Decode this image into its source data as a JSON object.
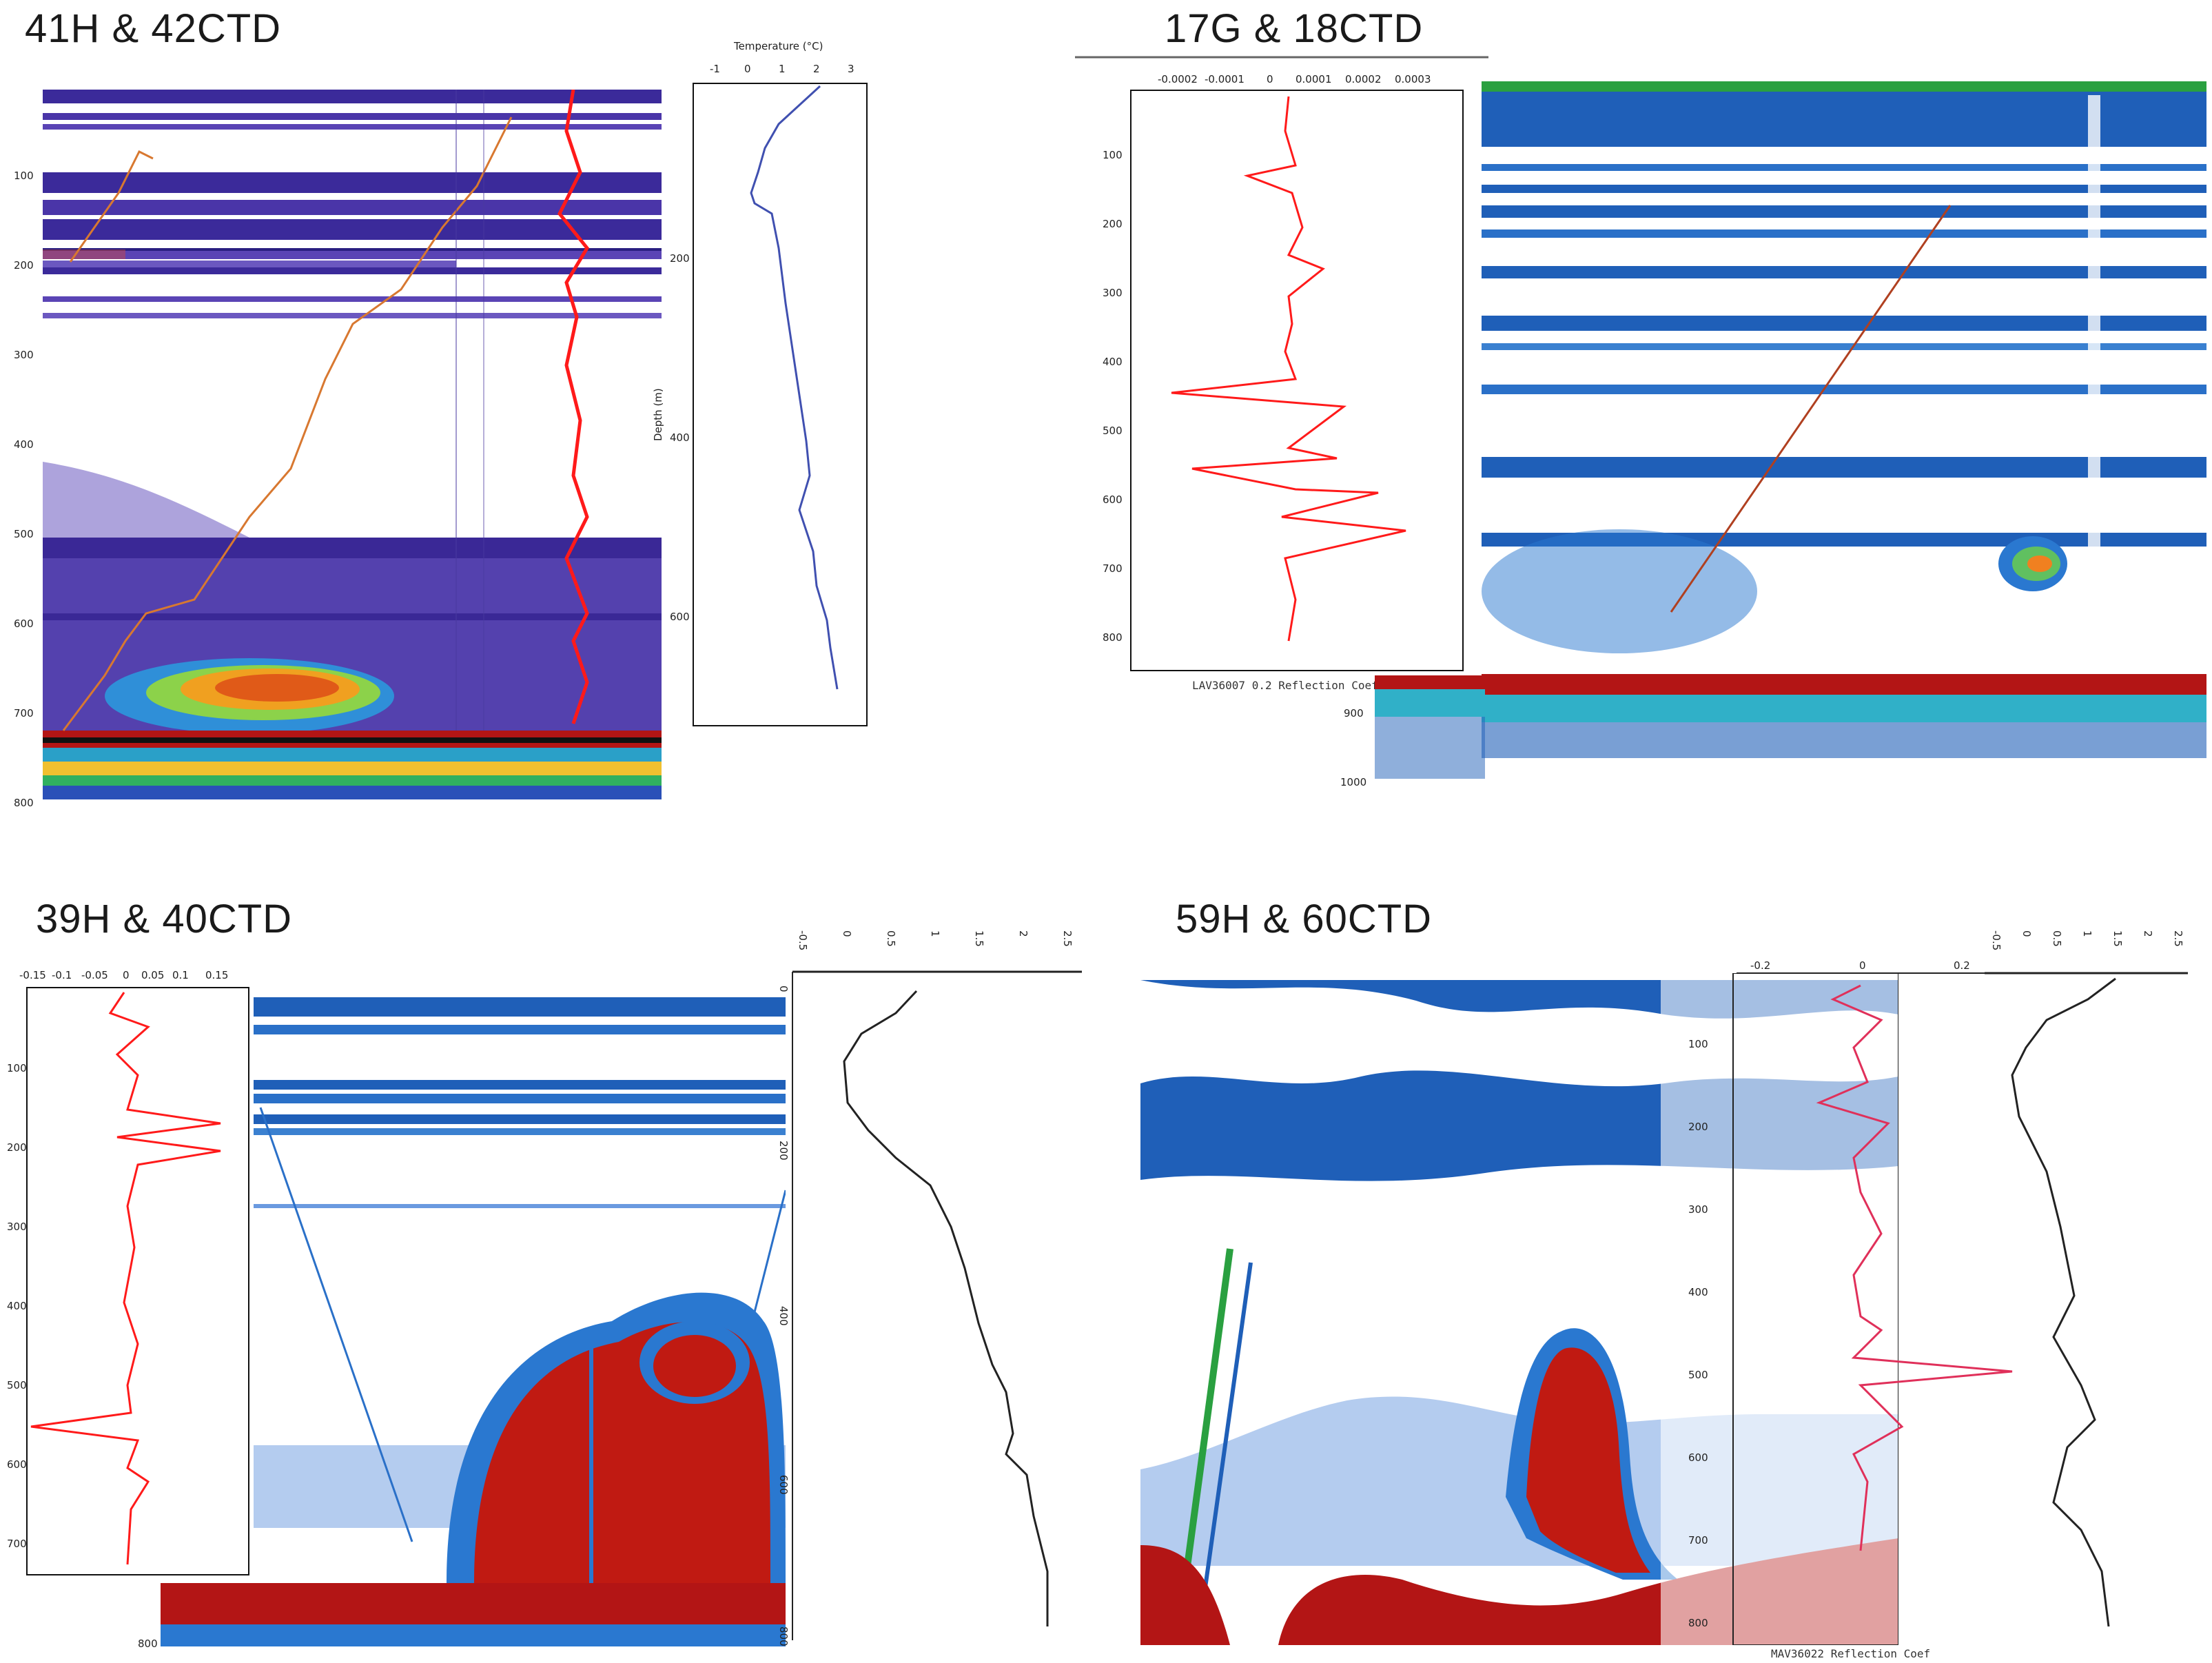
{
  "panels": [
    {
      "title": "41H & 42CTD",
      "colors": {
        "background": "#5a3fb0",
        "bottom": "#b31515",
        "school": "#f08020",
        "trace": "#ff1a1a"
      },
      "temperature_axis_label": "Temperature (°C)",
      "temperature_ticks": [
        "-1",
        "0",
        "1",
        "2",
        "3"
      ],
      "depth_axis_label": "Depth (m)",
      "profile_depth_ticks": [
        "200",
        "400",
        "600"
      ],
      "echo_depth_ticks": [
        "100",
        "200",
        "300",
        "400",
        "500",
        "600",
        "700",
        "800"
      ]
    },
    {
      "title": "17G & 18CTD",
      "colors": {
        "background": "#ffffff",
        "layer": "#1f5fb8",
        "bottom": "#b31515",
        "trace": "#ff1a1a"
      },
      "reflection_ticks": [
        "-0.0002",
        "-0.0001",
        "0",
        "0.0001",
        "0.0002",
        "0.0003"
      ],
      "reflection_label": "LAV36007 0.2 Reflection Coef",
      "depth_ticks": [
        "100",
        "200",
        "300",
        "400",
        "500",
        "600",
        "700",
        "800"
      ],
      "echo_depth_ticks": [
        "900",
        "1000"
      ]
    },
    {
      "title": "39H & 40CTD",
      "colors": {
        "background": "#ffffff",
        "layer": "#1f5fb8",
        "bottom": "#b31515",
        "school": "#c01a12",
        "trace": "#ff1a1a"
      },
      "reflection_ticks": [
        "-0.15",
        "-0.1",
        "-0.05",
        "0",
        "0.05",
        "0.1",
        "0.15"
      ],
      "depth_ticks": [
        "100",
        "200",
        "300",
        "400",
        "500",
        "600",
        "700"
      ],
      "echo_depth_ticks": [
        "800"
      ],
      "temperature_ticks": [
        "-0.5",
        "0",
        "0.5",
        "1",
        "1.5",
        "2",
        "2.5"
      ],
      "profile_depth_ticks": [
        "0",
        "200",
        "400",
        "600",
        "800"
      ]
    },
    {
      "title": "59H & 60CTD",
      "colors": {
        "background": "#ffffff",
        "layer": "#1f5fb8",
        "bottom": "#b31515",
        "school": "#c01a12",
        "trace": "#e0305a"
      },
      "reflection_ticks": [
        "-0.2",
        "0",
        "0.2"
      ],
      "reflection_label": "MAV36022 Reflection Coef",
      "depth_ticks": [
        "100",
        "200",
        "300",
        "400",
        "500",
        "600",
        "700",
        "800"
      ],
      "temperature_ticks": [
        "-0.5",
        "0",
        "0.5",
        "1",
        "1.5",
        "2",
        "2.5"
      ]
    }
  ]
}
